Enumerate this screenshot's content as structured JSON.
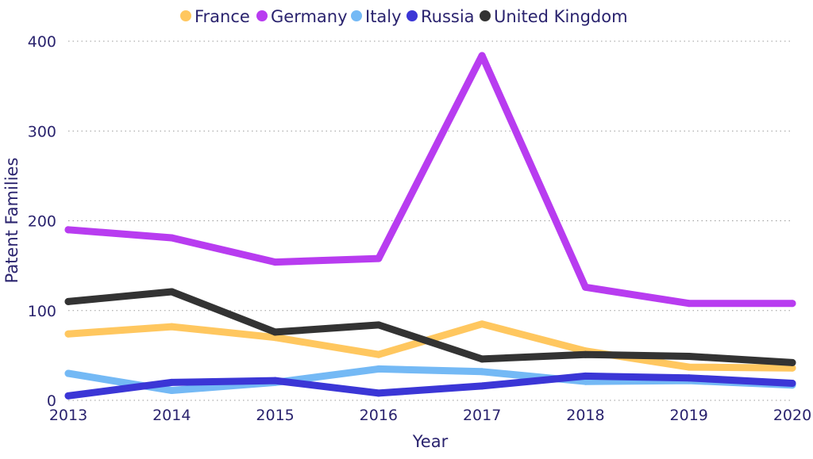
{
  "chart_data": {
    "type": "line",
    "title": "",
    "xlabel": "Year",
    "ylabel": "Patent Families",
    "x": [
      "2013",
      "2014",
      "2015",
      "2016",
      "2017",
      "2018",
      "2019",
      "2020"
    ],
    "ylim": [
      0,
      400
    ],
    "yticks": [
      "0",
      "100",
      "200",
      "300",
      "400"
    ],
    "grid": true,
    "legend_position": "top-center",
    "series": [
      {
        "name": "France",
        "color": "#FFC75F",
        "values": [
          74,
          82,
          70,
          51,
          85,
          55,
          37,
          36
        ]
      },
      {
        "name": "Germany",
        "color": "#B83CF0",
        "values": [
          190,
          181,
          154,
          158,
          384,
          126,
          108,
          108
        ]
      },
      {
        "name": "Italy",
        "color": "#74B9F5",
        "values": [
          30,
          11,
          20,
          35,
          32,
          21,
          22,
          17
        ]
      },
      {
        "name": "Russia",
        "color": "#3B36D6",
        "values": [
          5,
          20,
          22,
          8,
          16,
          27,
          25,
          19
        ]
      },
      {
        "name": "United Kingdom",
        "color": "#333333",
        "values": [
          110,
          121,
          76,
          84,
          46,
          51,
          49,
          42
        ]
      }
    ]
  }
}
